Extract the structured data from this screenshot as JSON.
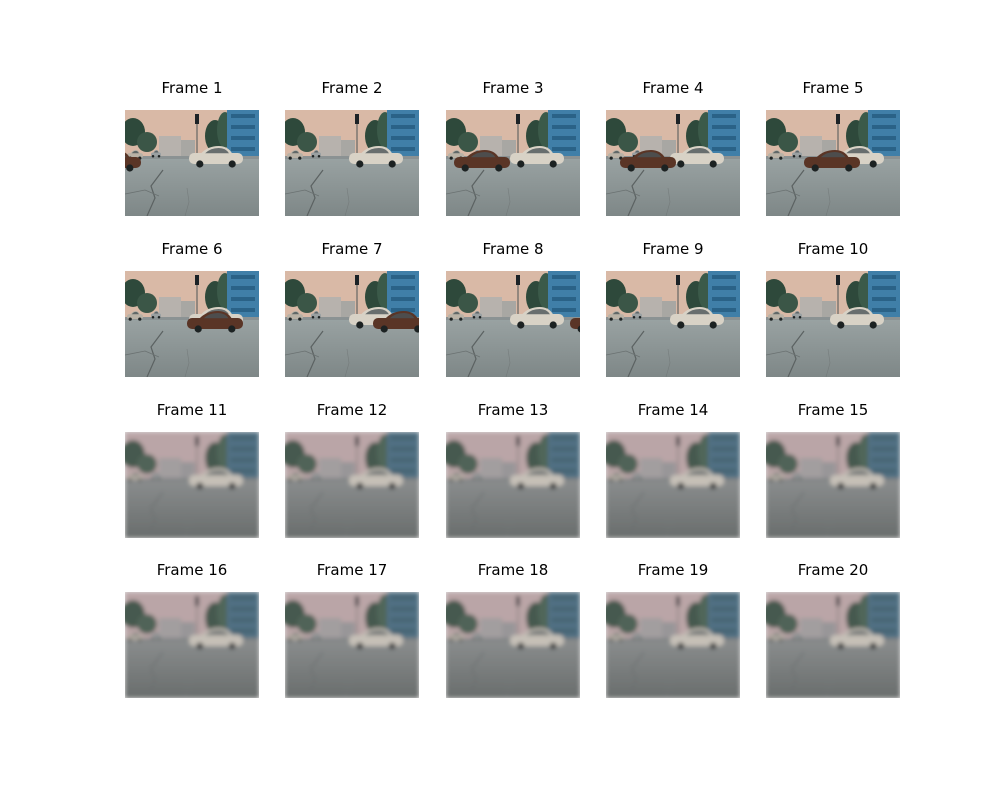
{
  "frames": [
    {
      "title": "Frame 1",
      "clarity": "sharp",
      "dark_car": "left-edge"
    },
    {
      "title": "Frame 2",
      "clarity": "sharp",
      "dark_car": "none"
    },
    {
      "title": "Frame 3",
      "clarity": "sharp",
      "dark_car": "left"
    },
    {
      "title": "Frame 4",
      "clarity": "sharp",
      "dark_car": "left-center"
    },
    {
      "title": "Frame 5",
      "clarity": "sharp",
      "dark_car": "center"
    },
    {
      "title": "Frame 6",
      "clarity": "sharp",
      "dark_car": "center-right"
    },
    {
      "title": "Frame 7",
      "clarity": "sharp",
      "dark_car": "right"
    },
    {
      "title": "Frame 8",
      "clarity": "sharp",
      "dark_car": "right-edge"
    },
    {
      "title": "Frame 9",
      "clarity": "sharp",
      "dark_car": "none"
    },
    {
      "title": "Frame 10",
      "clarity": "sharp",
      "dark_car": "none"
    },
    {
      "title": "Frame 11",
      "clarity": "blurry",
      "dark_car": "none"
    },
    {
      "title": "Frame 12",
      "clarity": "blurry",
      "dark_car": "none"
    },
    {
      "title": "Frame 13",
      "clarity": "blurry",
      "dark_car": "none"
    },
    {
      "title": "Frame 14",
      "clarity": "blurry",
      "dark_car": "none"
    },
    {
      "title": "Frame 15",
      "clarity": "blurry",
      "dark_car": "none"
    },
    {
      "title": "Frame 16",
      "clarity": "blurry",
      "dark_car": "none"
    },
    {
      "title": "Frame 17",
      "clarity": "blurry",
      "dark_car": "none"
    },
    {
      "title": "Frame 18",
      "clarity": "blurry",
      "dark_car": "none"
    },
    {
      "title": "Frame 19",
      "clarity": "blurry",
      "dark_car": "none"
    },
    {
      "title": "Frame 20",
      "clarity": "blurry",
      "dark_car": "none"
    }
  ],
  "colors": {
    "sky_sharp": "#d9b9a6",
    "sky_blurry": "#c9aeb0",
    "road": "#8f9a9b",
    "building_blue": "#3f7fa8",
    "trees": "#2f4a3a",
    "white_car": "#d8d2c6",
    "dark_car": "#5a3426"
  }
}
